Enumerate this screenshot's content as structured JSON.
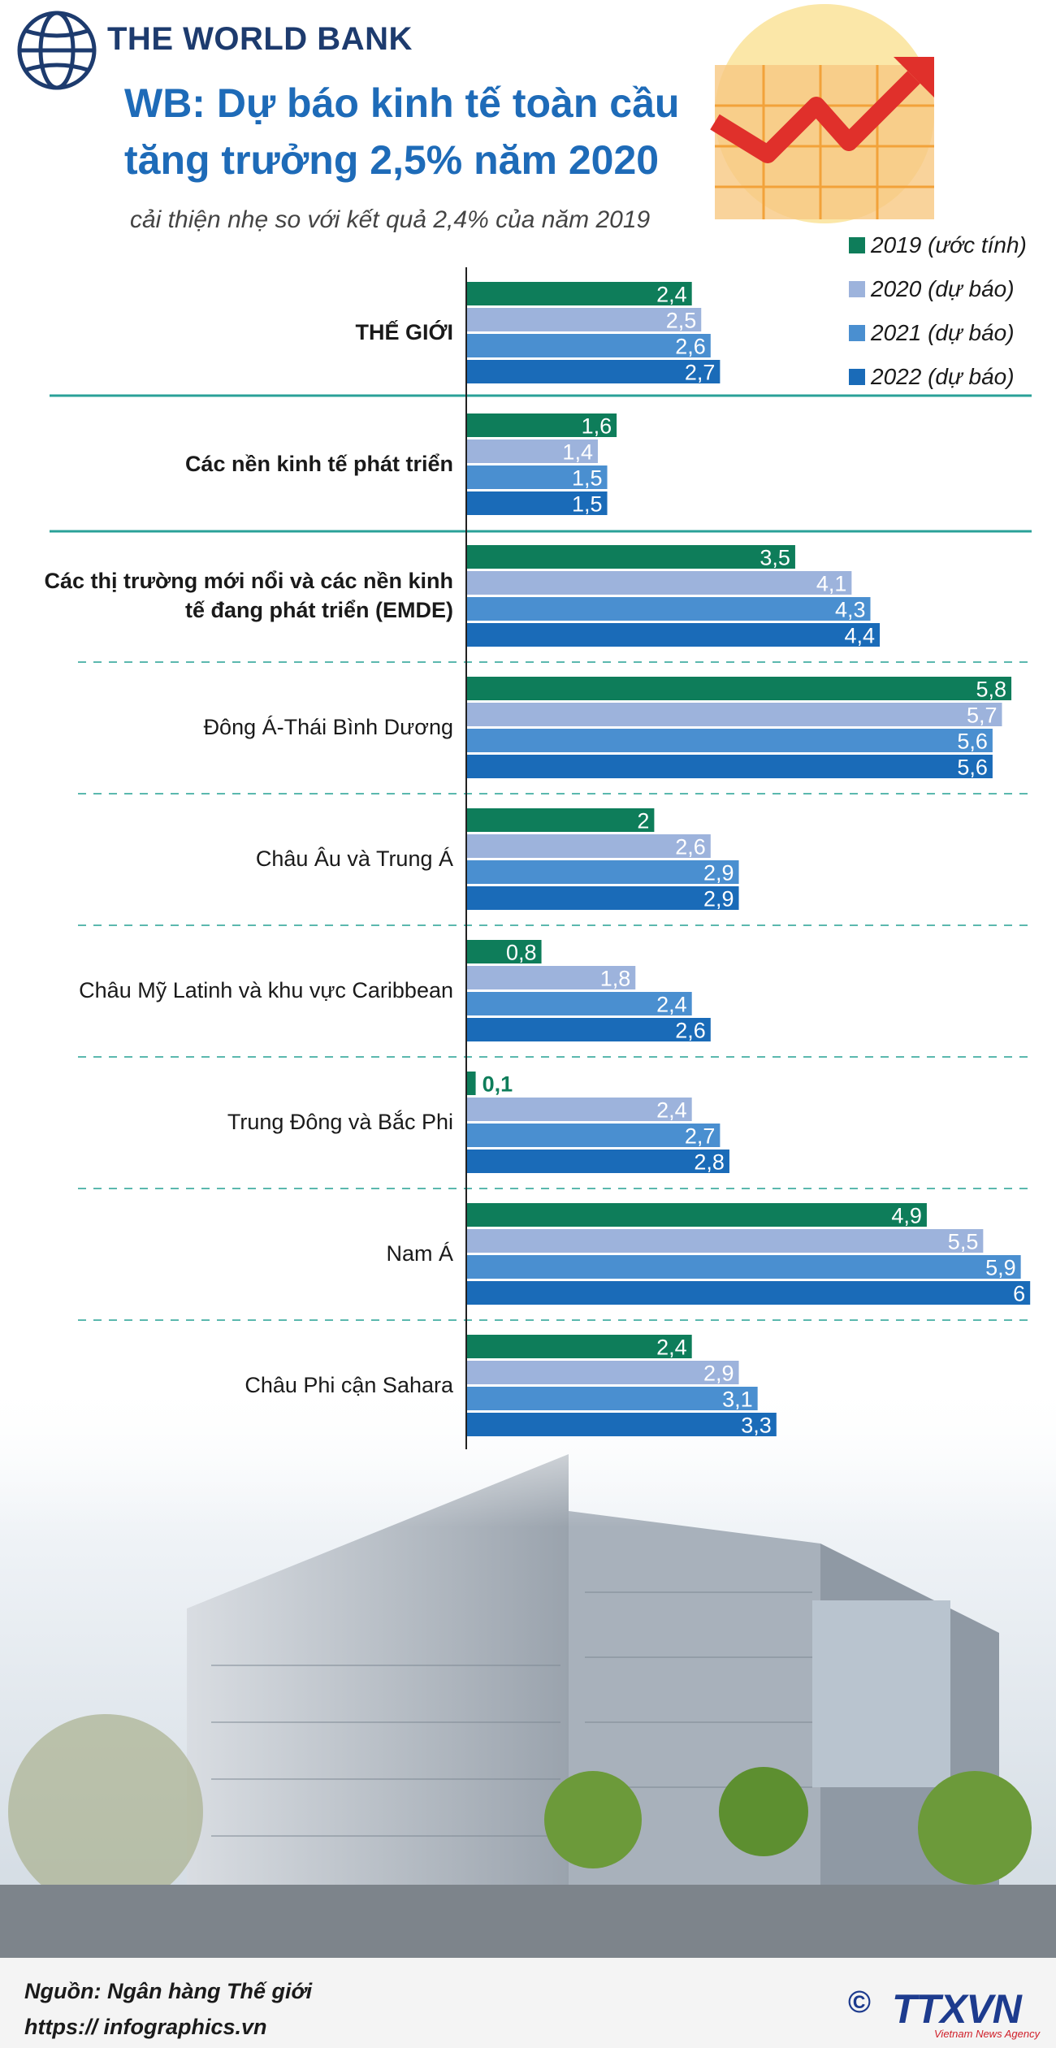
{
  "header": {
    "brand": "THE WORLD BANK"
  },
  "chart_data": {
    "type": "bar",
    "orientation": "horizontal",
    "title": "WB: Dự báo kinh tế toàn cầu tăng trưởng 2,5% năm 2020",
    "subtitle": "cải thiện nhẹ so với kết quả 2,4% của năm 2019",
    "categories": [
      "THẾ GIỚI",
      "Các nền kinh tế phát triển",
      "Các thị trường mới nổi và các nền kinh tế đang phát triển (EMDE)",
      "Đông Á-Thái Bình Dương",
      "Châu Âu và Trung Á",
      "Châu Mỹ Latinh và khu vực Caribbean",
      "Trung Đông và Bắc Phi",
      "Nam Á",
      "Châu Phi cận Sahara"
    ],
    "series": [
      {
        "name": "2019 (ước tính)",
        "color": "#0e7d5a",
        "values": [
          2.4,
          1.6,
          3.5,
          5.8,
          2,
          0.8,
          0.1,
          4.9,
          2.4
        ],
        "value_labels": [
          "2,4",
          "1,6",
          "3,5",
          "5,8",
          "2",
          "0,8",
          "0,1",
          "4,9",
          "2,4"
        ]
      },
      {
        "name": "2020 (dự báo)",
        "color": "#9db3dc",
        "values": [
          2.5,
          1.4,
          4.1,
          5.7,
          2.6,
          1.8,
          2.4,
          5.5,
          2.9
        ],
        "value_labels": [
          "2,5",
          "1,4",
          "4,1",
          "5,7",
          "2,6",
          "1,8",
          "2,4",
          "5,5",
          "2,9"
        ]
      },
      {
        "name": "2021 (dự báo)",
        "color": "#4a8fd0",
        "values": [
          2.6,
          1.5,
          4.3,
          5.6,
          2.9,
          2.4,
          2.7,
          5.9,
          3.1
        ],
        "value_labels": [
          "2,6",
          "1,5",
          "4,3",
          "5,6",
          "2,9",
          "2,4",
          "2,7",
          "5,9",
          "3,1"
        ]
      },
      {
        "name": "2022 (dự báo)",
        "color": "#1a6bb8",
        "values": [
          2.7,
          1.5,
          4.4,
          5.6,
          2.9,
          2.6,
          2.8,
          6,
          3.3
        ],
        "value_labels": [
          "2,7",
          "1,5",
          "4,4",
          "5,6",
          "2,9",
          "2,6",
          "2,8",
          "6",
          "3,3"
        ]
      }
    ]
  },
  "footer": {
    "source": "Nguồn: Ngân hàng Thế giới",
    "url": "https:// infographics.vn",
    "copyright": "©",
    "logo": "TTXVN",
    "logo_tagline": "Vietnam News Agency"
  }
}
